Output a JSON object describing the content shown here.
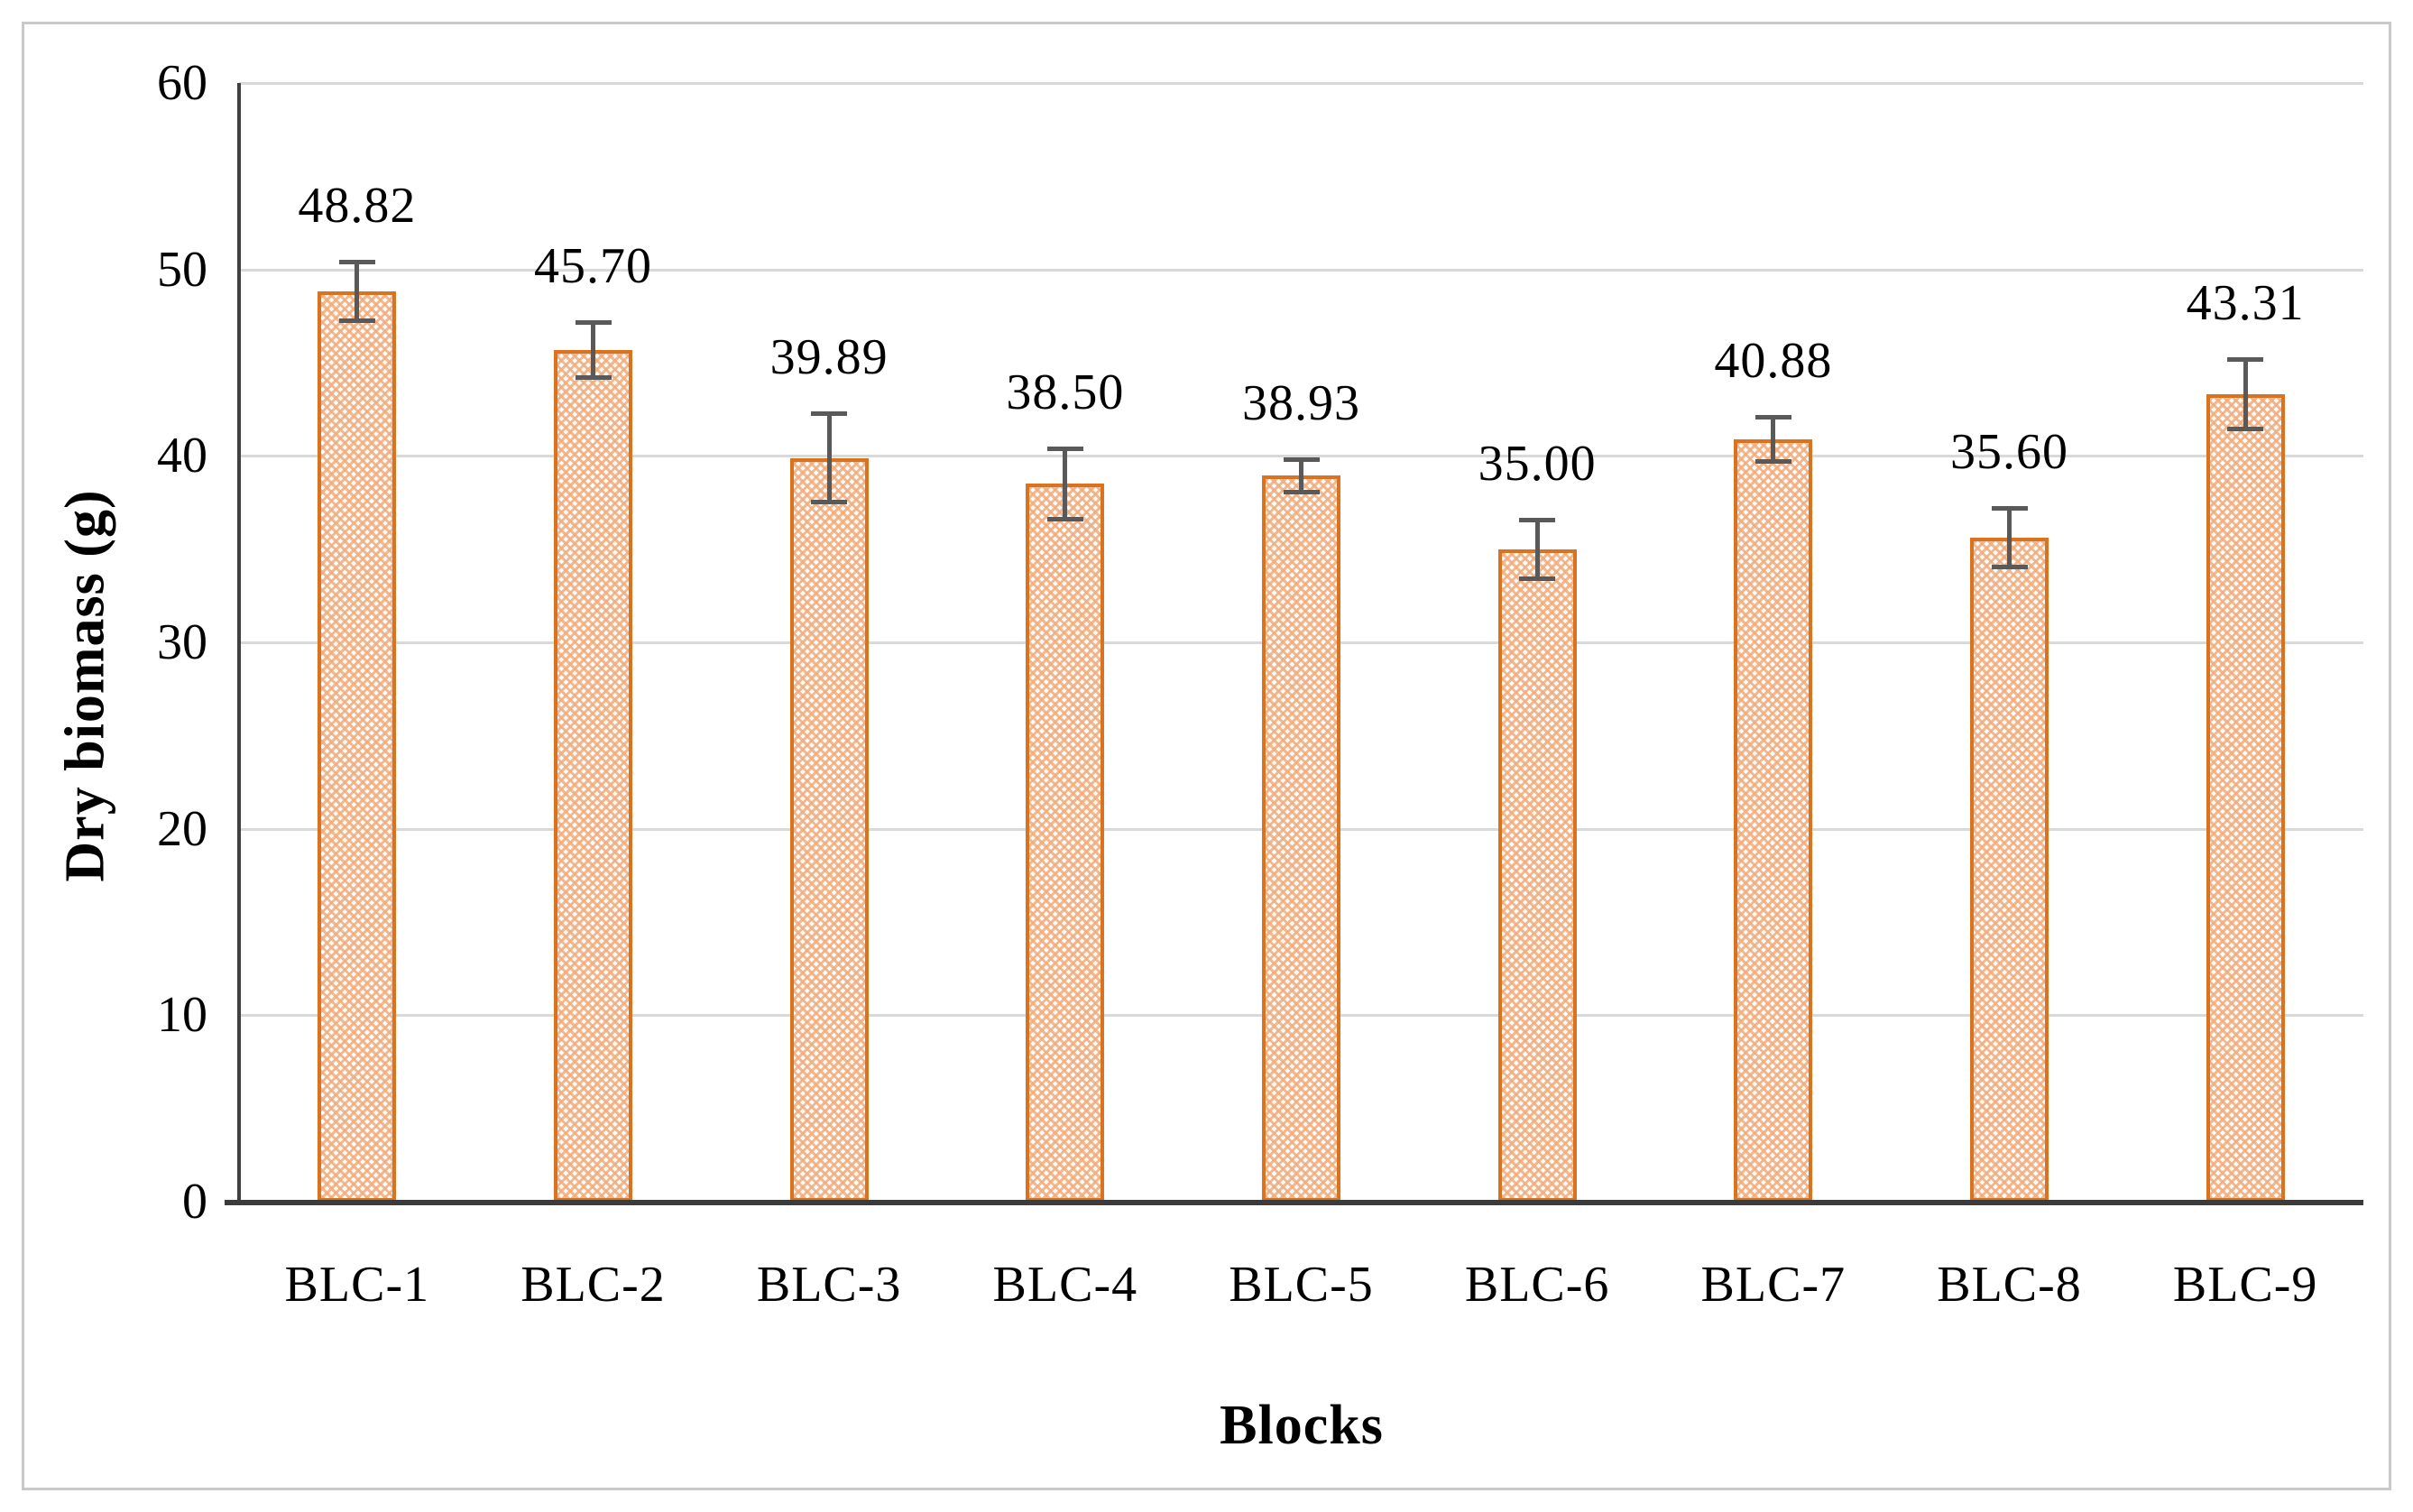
{
  "chart_data": {
    "type": "bar",
    "title": "",
    "xlabel": "Blocks",
    "ylabel": "Dry biomass (g)",
    "categories": [
      "BLC-1",
      "BLC-2",
      "BLC-3",
      "BLC-4",
      "BLC-5",
      "BLC-6",
      "BLC-7",
      "BLC-8",
      "BLC-9"
    ],
    "values": [
      48.82,
      45.7,
      39.89,
      38.5,
      38.93,
      35.0,
      40.88,
      35.6,
      43.31
    ],
    "value_labels": [
      "48.82",
      "45.70",
      "39.89",
      "38.50",
      "38.93",
      "35.00",
      "40.88",
      "35.60",
      "43.31"
    ],
    "error_bars": [
      1.6,
      1.5,
      2.4,
      1.9,
      0.9,
      1.6,
      1.2,
      1.6,
      1.9
    ],
    "ylim": [
      0,
      60
    ],
    "yticks": [
      0,
      10,
      20,
      30,
      40,
      50,
      60
    ],
    "ytick_labels": [
      "0",
      "10",
      "20",
      "30",
      "40",
      "50",
      "60"
    ],
    "grid": true,
    "legend": "none",
    "series_name": "Dry biomass"
  },
  "colors": {
    "bar_border": "#d9731f",
    "bar_hatch": "#f2ac7c",
    "error_bar": "#595959",
    "gridline": "#d9d9d9",
    "axis_line": "#3b3b3b",
    "text": "#000000",
    "frame_border": "#c9c9c9",
    "background": "#ffffff"
  }
}
